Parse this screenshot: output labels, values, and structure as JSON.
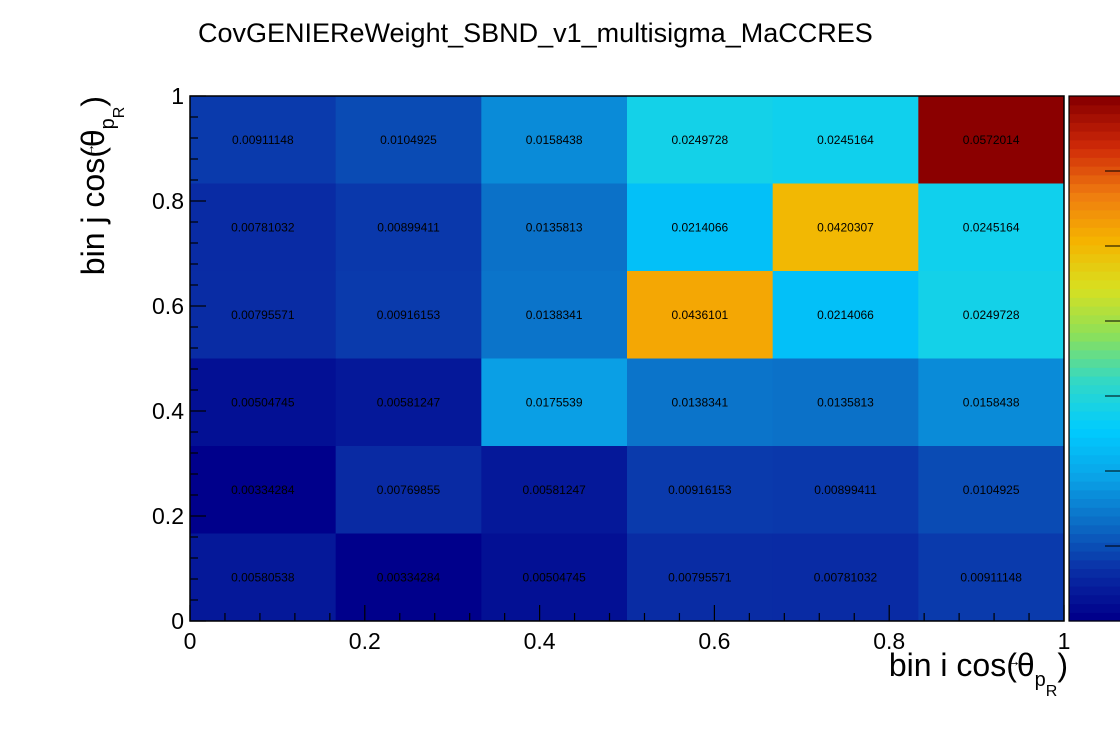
{
  "chart_data": {
    "type": "heatmap",
    "title": "CovGENIEReWeight_SBND_v1_multisigma_MaCCRES",
    "xlabel": {
      "main": "bin i cos(θ",
      "sub": "p",
      "arrow": "→",
      "subsub": "R",
      "close": ")"
    },
    "ylabel": {
      "main": "bin j cos(θ",
      "sub": "p",
      "arrow": "→",
      "subsub": "R",
      "close": ")"
    },
    "xlim": [
      0,
      1
    ],
    "ylim": [
      0,
      1
    ],
    "x_ticks": [
      "0",
      "0.2",
      "0.4",
      "0.6",
      "0.8",
      "1"
    ],
    "y_ticks": [
      "0",
      "0.2",
      "0.4",
      "0.6",
      "0.8",
      "1"
    ],
    "x_tick_values": [
      0,
      0.2,
      0.4,
      0.6,
      0.8,
      1
    ],
    "y_tick_values": [
      0,
      0.2,
      0.4,
      0.6,
      0.8,
      1
    ],
    "n_bins": 6,
    "rows_top_to_bottom": [
      [
        "0.00911148",
        "0.0104925",
        "0.0158438",
        "0.0249728",
        "0.0245164",
        "0.0572014"
      ],
      [
        "0.00781032",
        "0.00899411",
        "0.0135813",
        "0.0214066",
        "0.0420307",
        "0.0245164"
      ],
      [
        "0.00795571",
        "0.00916153",
        "0.0138341",
        "0.0436101",
        "0.0214066",
        "0.0249728"
      ],
      [
        "0.00504745",
        "0.00581247",
        "0.0175539",
        "0.0138341",
        "0.0135813",
        "0.0158438"
      ],
      [
        "0.00334284",
        "0.00769855",
        "0.00581247",
        "0.00916153",
        "0.00899411",
        "0.0104925"
      ],
      [
        "0.00580538",
        "0.00334284",
        "0.00504745",
        "0.00795571",
        "0.00781032",
        "0.00911148"
      ]
    ],
    "zlim": [
      0.00334284,
      0.0572014
    ],
    "colormap": [
      "#00008b",
      "#0a2fa6",
      "#0b6cc5",
      "#0aa4e8",
      "#00ccff",
      "#30d8c8",
      "#8be05a",
      "#d8e020",
      "#f5b400",
      "#ef7c10",
      "#d02a08",
      "#8b0000"
    ]
  }
}
